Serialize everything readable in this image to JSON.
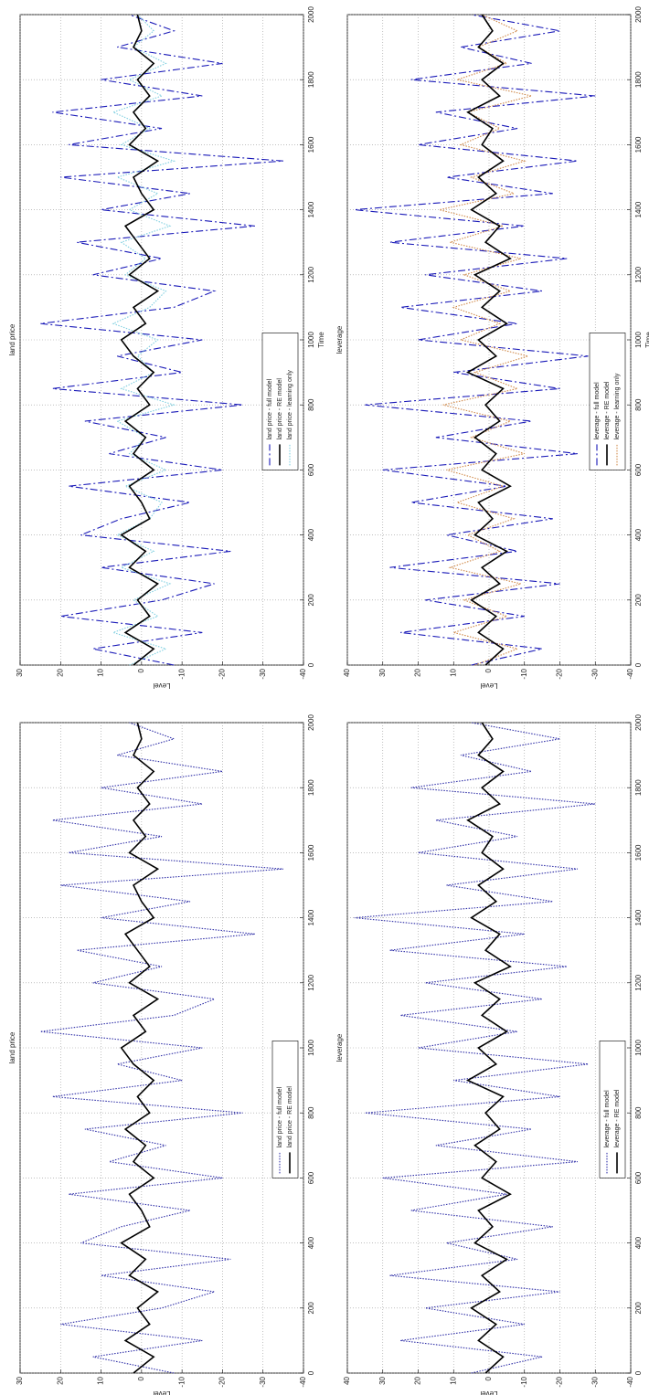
{
  "chart_data": [
    {
      "type": "line",
      "title": "land price",
      "xlabel": "Time",
      "ylabel": "Level",
      "x": [
        0,
        50,
        100,
        150,
        200,
        250,
        300,
        350,
        400,
        450,
        500,
        550,
        600,
        650,
        700,
        750,
        800,
        850,
        900,
        950,
        1000,
        1050,
        1100,
        1150,
        1200,
        1250,
        1300,
        1350,
        1400,
        1450,
        1500,
        1550,
        1600,
        1650,
        1700,
        1750,
        1800,
        1850,
        1900,
        1950,
        2000
      ],
      "xlim": [
        0,
        2000
      ],
      "xticks": [
        0,
        200,
        400,
        600,
        800,
        1000,
        1200,
        1400,
        1600,
        1800,
        2000
      ],
      "ylim": [
        -40,
        30
      ],
      "yticks": [
        -40,
        -30,
        -20,
        -10,
        0,
        10,
        20,
        30
      ],
      "grid": true,
      "legend": "lower center",
      "series": [
        {
          "name": "land price - full model",
          "color": "#1a1ab8",
          "dash": "dashdot",
          "values": [
            -8,
            12,
            -15,
            20,
            -5,
            -18,
            10,
            -22,
            15,
            5,
            -12,
            18,
            -20,
            8,
            -6,
            14,
            -25,
            22,
            -10,
            6,
            -15,
            25,
            -8,
            -18,
            12,
            -5,
            16,
            -28,
            10,
            -12,
            20,
            -35,
            18,
            -5,
            22,
            -15,
            10,
            -20,
            6,
            -8,
            3
          ]
        },
        {
          "name": "land price - RE model",
          "color": "#000000",
          "dash": "solid",
          "values": [
            2,
            -3,
            4,
            -2,
            1,
            -4,
            3,
            -1,
            5,
            -2,
            0,
            3,
            -3,
            2,
            -1,
            4,
            -2,
            1,
            -3,
            2,
            5,
            -1,
            2,
            -4,
            3,
            -2,
            1,
            4,
            -3,
            0,
            2,
            -4,
            3,
            -1,
            2,
            -2,
            1,
            -3,
            2,
            0,
            1
          ]
        },
        {
          "name": "land price - learning only",
          "color": "#7fcfe0",
          "dash": "dotted",
          "values": [
            3,
            -6,
            7,
            -4,
            2,
            -7,
            5,
            -3,
            6,
            -2,
            -5,
            4,
            -6,
            3,
            -1,
            6,
            -8,
            5,
            -3,
            1,
            -4,
            7,
            -2,
            -6,
            4,
            -1,
            5,
            -7,
            3,
            -4,
            6,
            -8,
            5,
            -2,
            7,
            -5,
            3,
            -6,
            2,
            -3,
            1
          ]
        }
      ]
    },
    {
      "type": "line",
      "title": "leverage",
      "xlabel": "Time",
      "ylabel": "Level",
      "x": [
        0,
        50,
        100,
        150,
        200,
        250,
        300,
        350,
        400,
        450,
        500,
        550,
        600,
        650,
        700,
        750,
        800,
        850,
        900,
        950,
        1000,
        1050,
        1100,
        1150,
        1200,
        1250,
        1300,
        1350,
        1400,
        1450,
        1500,
        1550,
        1600,
        1650,
        1700,
        1750,
        1800,
        1850,
        1900,
        1950,
        2000
      ],
      "xlim": [
        0,
        2000
      ],
      "xticks": [
        0,
        200,
        400,
        600,
        800,
        1000,
        1200,
        1400,
        1600,
        1800,
        2000
      ],
      "ylim": [
        -40,
        40
      ],
      "yticks": [
        -40,
        -30,
        -20,
        -10,
        0,
        10,
        20,
        30,
        40
      ],
      "grid": true,
      "legend": "lower center",
      "series": [
        {
          "name": "leverage - full model",
          "color": "#1a1ab8",
          "dash": "dashdot",
          "values": [
            5,
            -15,
            25,
            -10,
            18,
            -20,
            28,
            -8,
            12,
            -18,
            22,
            -5,
            30,
            -25,
            15,
            -12,
            35,
            -20,
            10,
            -28,
            20,
            -8,
            25,
            -15,
            18,
            -22,
            28,
            -10,
            38,
            -18,
            12,
            -25,
            20,
            -8,
            15,
            -30,
            22,
            -12,
            8,
            -20,
            5
          ]
        },
        {
          "name": "leverage - RE model",
          "color": "#000000",
          "dash": "solid",
          "values": [
            1,
            -4,
            3,
            -2,
            5,
            -3,
            2,
            -5,
            4,
            -1,
            3,
            -6,
            2,
            -2,
            4,
            -3,
            1,
            -4,
            6,
            -2,
            3,
            -5,
            2,
            -3,
            4,
            -6,
            1,
            -3,
            5,
            -2,
            3,
            -4,
            2,
            -1,
            6,
            -3,
            2,
            -4,
            3,
            -1,
            2
          ]
        },
        {
          "name": "leverage - learning only",
          "color": "#d08a4a",
          "dash": "dotted",
          "values": [
            4,
            -8,
            10,
            -5,
            7,
            -9,
            11,
            -3,
            6,
            -7,
            9,
            -4,
            12,
            -10,
            5,
            -6,
            13,
            -8,
            4,
            -11,
            8,
            -3,
            10,
            -6,
            7,
            -9,
            11,
            -4,
            14,
            -7,
            5,
            -10,
            8,
            -3,
            6,
            -12,
            9,
            -5,
            3,
            -8,
            2
          ]
        }
      ]
    },
    {
      "type": "line",
      "title": "land price",
      "ylabel": "Level",
      "x": [
        0,
        50,
        100,
        150,
        200,
        250,
        300,
        350,
        400,
        450,
        500,
        550,
        600,
        650,
        700,
        750,
        800,
        850,
        900,
        950,
        1000,
        1050,
        1100,
        1150,
        1200,
        1250,
        1300,
        1350,
        1400,
        1450,
        1500,
        1550,
        1600,
        1650,
        1700,
        1750,
        1800,
        1850,
        1900,
        1950,
        2000
      ],
      "xlim": [
        0,
        2000
      ],
      "xticks": [
        0,
        200,
        400,
        600,
        800,
        1000,
        1200,
        1400,
        1600,
        1800,
        2000
      ],
      "ylim": [
        -40,
        30
      ],
      "yticks": [
        -40,
        -30,
        -20,
        -10,
        0,
        10,
        20,
        30
      ],
      "grid": true,
      "legend": "lower center",
      "series": [
        {
          "name": "land price - full model",
          "color": "#3030a8",
          "dash": "dotted",
          "values": [
            -8,
            12,
            -15,
            20,
            -5,
            -18,
            10,
            -22,
            15,
            5,
            -12,
            18,
            -20,
            8,
            -6,
            14,
            -25,
            22,
            -10,
            6,
            -15,
            25,
            -8,
            -18,
            12,
            -5,
            16,
            -28,
            10,
            -12,
            20,
            -35,
            18,
            -5,
            22,
            -15,
            10,
            -20,
            6,
            -8,
            3
          ]
        },
        {
          "name": "land price - RE model",
          "color": "#000000",
          "dash": "solid",
          "values": [
            2,
            -3,
            4,
            -2,
            1,
            -4,
            3,
            -1,
            5,
            -2,
            0,
            3,
            -3,
            2,
            -1,
            4,
            -2,
            1,
            -3,
            2,
            5,
            -1,
            2,
            -4,
            3,
            -2,
            1,
            4,
            -3,
            0,
            2,
            -4,
            3,
            -1,
            2,
            -2,
            1,
            -3,
            2,
            0,
            1
          ]
        }
      ]
    },
    {
      "type": "line",
      "title": "leverage",
      "ylabel": "Level",
      "x": [
        0,
        50,
        100,
        150,
        200,
        250,
        300,
        350,
        400,
        450,
        500,
        550,
        600,
        650,
        700,
        750,
        800,
        850,
        900,
        950,
        1000,
        1050,
        1100,
        1150,
        1200,
        1250,
        1300,
        1350,
        1400,
        1450,
        1500,
        1550,
        1600,
        1650,
        1700,
        1750,
        1800,
        1850,
        1900,
        1950,
        2000
      ],
      "xlim": [
        0,
        2000
      ],
      "xticks": [
        0,
        200,
        400,
        600,
        800,
        1000,
        1200,
        1400,
        1600,
        1800,
        2000
      ],
      "ylim": [
        -40,
        40
      ],
      "yticks": [
        -40,
        -30,
        -20,
        -10,
        0,
        10,
        20,
        30,
        40
      ],
      "grid": true,
      "legend": "lower center",
      "series": [
        {
          "name": "leverage - full model",
          "color": "#3030a8",
          "dash": "dotted",
          "values": [
            5,
            -15,
            25,
            -10,
            18,
            -20,
            28,
            -8,
            12,
            -18,
            22,
            -5,
            30,
            -25,
            15,
            -12,
            35,
            -20,
            10,
            -28,
            20,
            -8,
            25,
            -15,
            18,
            -22,
            28,
            -10,
            38,
            -18,
            12,
            -25,
            20,
            -8,
            15,
            -30,
            22,
            -12,
            8,
            -20,
            5
          ]
        },
        {
          "name": "leverage - RE model",
          "color": "#000000",
          "dash": "solid",
          "values": [
            1,
            -4,
            3,
            -2,
            5,
            -3,
            2,
            -5,
            4,
            -1,
            3,
            -6,
            2,
            -2,
            4,
            -3,
            1,
            -4,
            6,
            -2,
            3,
            -5,
            2,
            -3,
            4,
            -6,
            1,
            -3,
            5,
            -2,
            3,
            -4,
            2,
            -1,
            6,
            -3,
            2,
            -4,
            3,
            -1,
            2
          ]
        }
      ]
    }
  ]
}
